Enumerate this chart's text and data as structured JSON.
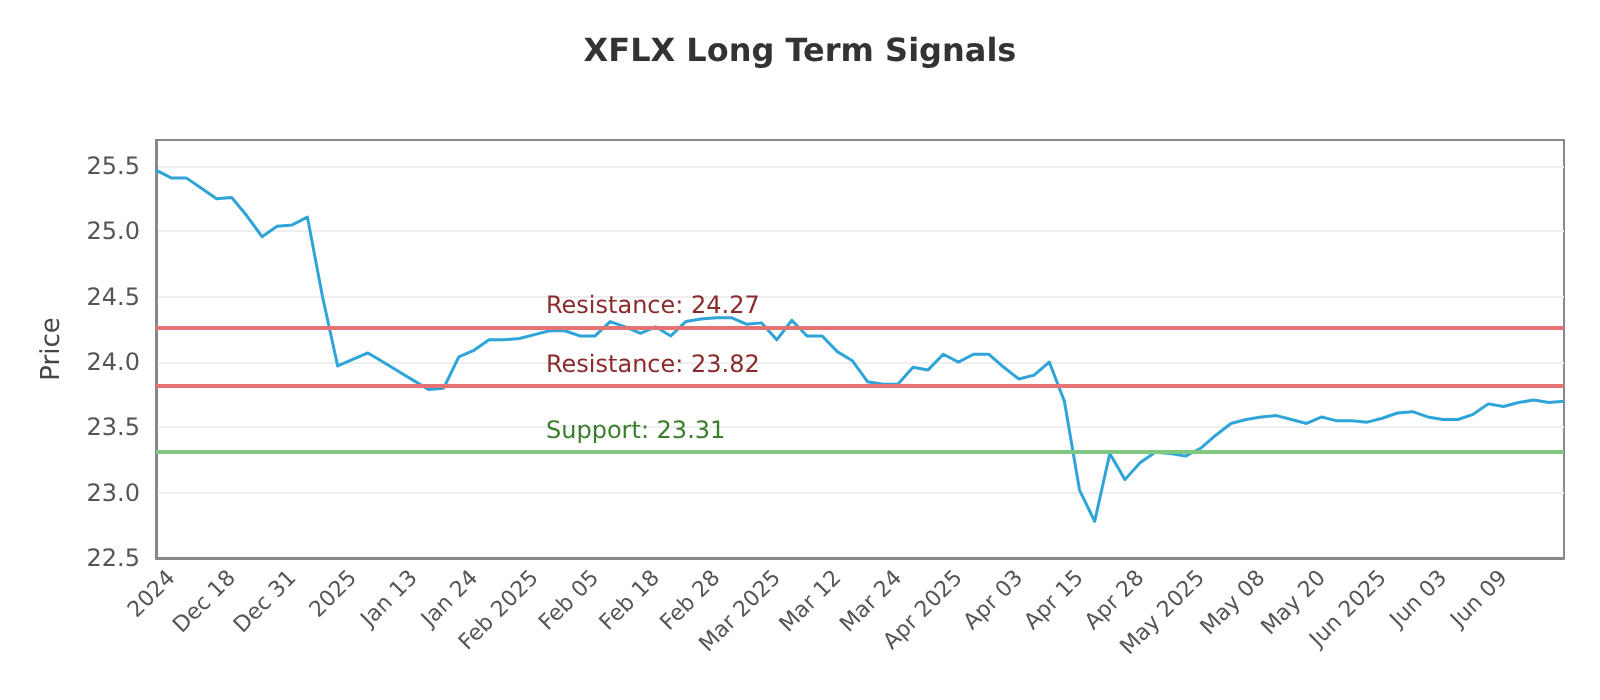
{
  "chart_data": {
    "type": "line",
    "title": "XFLX Long Term Signals",
    "ylabel": "Price",
    "categories": [
      null,
      "2024",
      null,
      null,
      null,
      "Dec 18",
      null,
      null,
      null,
      "Dec 31",
      null,
      null,
      null,
      "2025",
      null,
      null,
      null,
      "Jan 13",
      null,
      null,
      null,
      "Jan 24",
      null,
      null,
      null,
      "Feb 2025",
      null,
      null,
      null,
      "Feb 05",
      null,
      null,
      null,
      "Feb 18",
      null,
      null,
      null,
      "Feb 28",
      null,
      null,
      null,
      "Mar 2025",
      null,
      null,
      null,
      "Mar 12",
      null,
      null,
      null,
      "Mar 24",
      null,
      null,
      null,
      "Apr 2025",
      null,
      null,
      null,
      "Apr 03",
      null,
      null,
      null,
      "Apr 15",
      null,
      null,
      null,
      "Apr 28",
      null,
      null,
      null,
      "May 2025",
      null,
      null,
      null,
      "May 08",
      null,
      null,
      null,
      "May 20",
      null,
      null,
      null,
      "Jun 2025",
      null,
      null,
      null,
      "Jun 03",
      null,
      null,
      null,
      "Jun 09",
      null,
      null,
      null,
      null
    ],
    "series": [
      {
        "color": "#2fa4d8",
        "values": [
          25.47,
          25.41,
          25.41,
          25.33,
          25.25,
          25.26,
          25.12,
          24.96,
          25.04,
          25.05,
          25.11,
          24.5,
          23.97,
          24.02,
          24.07,
          24.0,
          23.93,
          23.86,
          23.79,
          23.8,
          24.04,
          24.09,
          24.17,
          24.17,
          24.18,
          24.21,
          24.24,
          24.24,
          24.2,
          24.2,
          24.31,
          24.27,
          24.22,
          24.27,
          24.2,
          24.31,
          24.33,
          24.34,
          24.34,
          24.29,
          24.3,
          24.17,
          24.32,
          24.2,
          24.2,
          24.08,
          24.01,
          23.85,
          23.83,
          23.83,
          23.96,
          23.94,
          24.06,
          24.0,
          24.06,
          24.06,
          23.96,
          23.87,
          23.9,
          24.0,
          23.7,
          23.02,
          22.78,
          23.3,
          23.1,
          23.23,
          23.31,
          23.3,
          23.28,
          23.34,
          23.44,
          23.53,
          23.56,
          23.58,
          23.59,
          23.56,
          23.53,
          23.58,
          23.55,
          23.55,
          23.54,
          23.57,
          23.61,
          23.62,
          23.58,
          23.56,
          23.56,
          23.6,
          23.68,
          23.66,
          23.69,
          23.71,
          23.69,
          23.7
        ]
      }
    ],
    "ylim": [
      22.5,
      25.7
    ],
    "yticks": [
      22.5,
      {
        "value": 23,
        "label": "23.0"
      },
      23.5,
      {
        "value": 24,
        "label": "24.0"
      },
      24.5,
      {
        "value": 25,
        "label": "25.0"
      },
      25.5
    ],
    "grid": "y",
    "marker": "none",
    "ref_lines": [
      {
        "axis": "y",
        "value": 24.27,
        "label": "Resistance: 24.27",
        "color": "#e57373"
      },
      {
        "axis": "y",
        "value": 23.82,
        "label": "Resistance: 23.82",
        "color": "#e57373"
      },
      {
        "axis": "y",
        "value": 23.31,
        "label": "Support: 23.31",
        "color": "#81c784"
      }
    ]
  }
}
